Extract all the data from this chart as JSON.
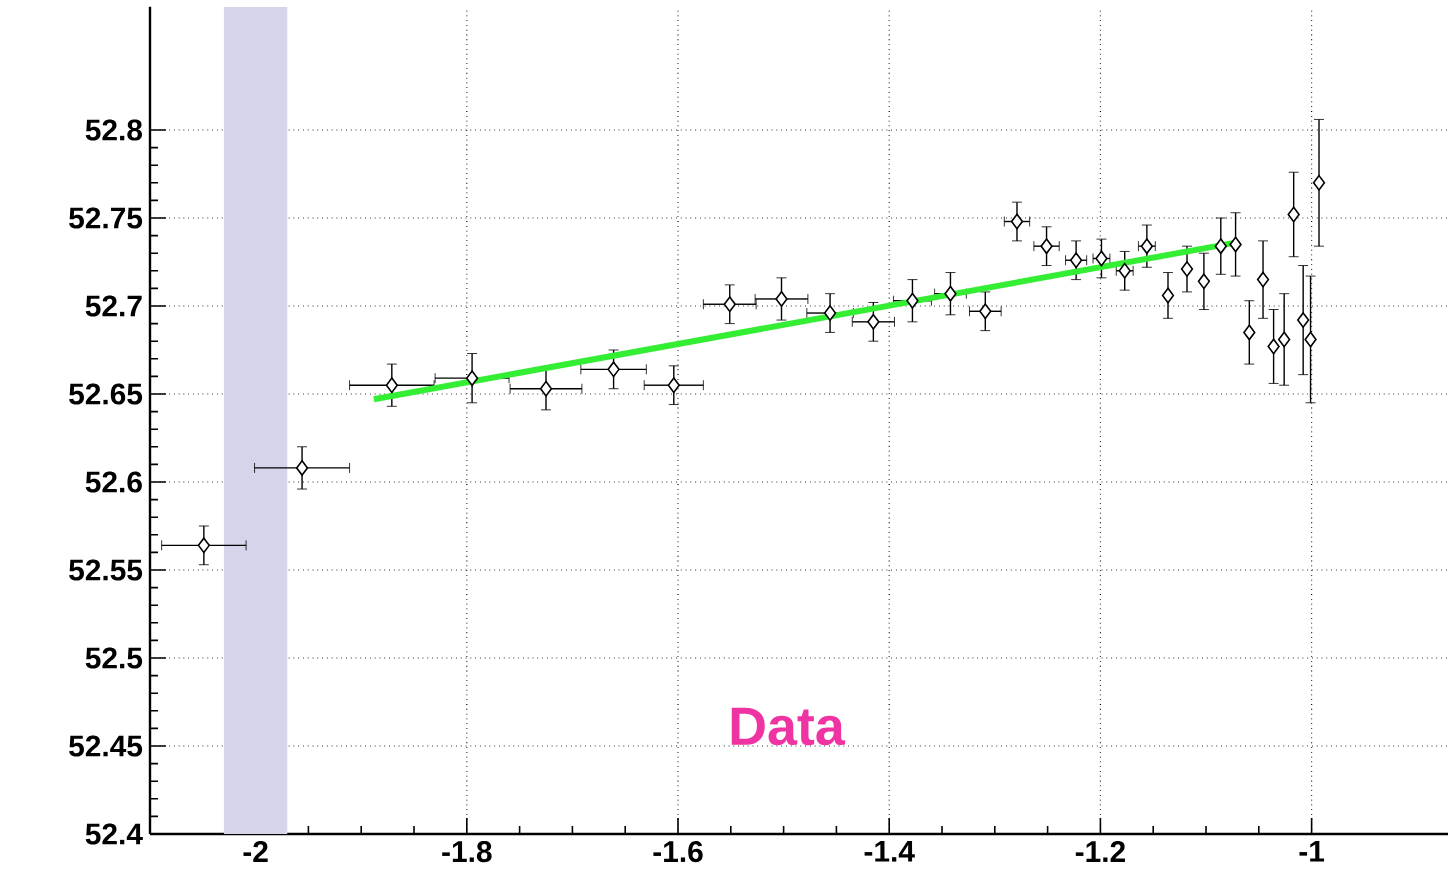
{
  "chart_data": {
    "type": "scatter",
    "xlim": [
      -2.1,
      -0.87
    ],
    "ylim": [
      52.4,
      52.87
    ],
    "xticks": [
      -2,
      -1.8,
      -1.6,
      -1.4,
      -1.2,
      -1
    ],
    "yticks": [
      52.4,
      52.45,
      52.5,
      52.55,
      52.6,
      52.65,
      52.7,
      52.75,
      52.8
    ],
    "grid": true,
    "bands": [
      {
        "axis": "x",
        "from": -2.03,
        "to": -1.97,
        "color": "#d4d4ea"
      }
    ],
    "annotations": [
      "Data"
    ],
    "series": [
      {
        "color": "#000000",
        "marker": "diamond",
        "x": [
          -2.049,
          -1.956,
          -1.871,
          -1.795,
          -1.725,
          -1.661,
          -1.604,
          -1.551,
          -1.502,
          -1.456,
          -1.415,
          -1.378,
          -1.342,
          -1.309,
          -1.279,
          -1.251,
          -1.223,
          -1.199,
          -1.177,
          -1.156,
          -1.136,
          -1.118,
          -1.102,
          -1.086,
          -1.072,
          -1.059,
          -1.046,
          -1.036,
          -1.026,
          -1.017,
          -1.008,
          -1.001,
          -0.993
        ],
        "values": [
          52.564,
          52.608,
          52.655,
          52.659,
          52.653,
          52.664,
          52.655,
          52.701,
          52.704,
          52.696,
          52.691,
          52.703,
          52.707,
          52.697,
          52.748,
          52.734,
          52.726,
          52.727,
          52.72,
          52.734,
          52.706,
          52.721,
          52.714,
          52.734,
          52.735,
          52.685,
          52.715,
          52.677,
          52.681,
          52.752,
          52.692,
          52.681,
          52.77
        ],
        "errors": [
          0.011,
          0.012,
          0.012,
          0.014,
          0.012,
          0.011,
          0.011,
          0.011,
          0.012,
          0.011,
          0.011,
          0.012,
          0.012,
          0.011,
          0.011,
          0.011,
          0.011,
          0.011,
          0.011,
          0.012,
          0.013,
          0.013,
          0.016,
          0.016,
          0.018,
          0.018,
          0.022,
          0.021,
          0.026,
          0.024,
          0.031,
          0.036,
          0.036
        ],
        "xerrors": [
          0.04,
          0.045,
          0.04,
          0.035,
          0.034,
          0.031,
          0.028,
          0.025,
          0.025,
          0.022,
          0.02,
          0.018,
          0.015,
          0.015,
          0.012,
          0.012,
          0.01,
          0.008,
          0.008,
          0.008,
          null,
          null,
          null,
          null,
          null,
          null,
          null,
          null,
          null,
          null,
          null,
          null,
          null
        ]
      },
      {
        "type": "line",
        "marker": "none",
        "color": "#33ee33",
        "x": [
          -1.888,
          -1.072
        ],
        "values": [
          52.647,
          52.736
        ]
      }
    ]
  }
}
